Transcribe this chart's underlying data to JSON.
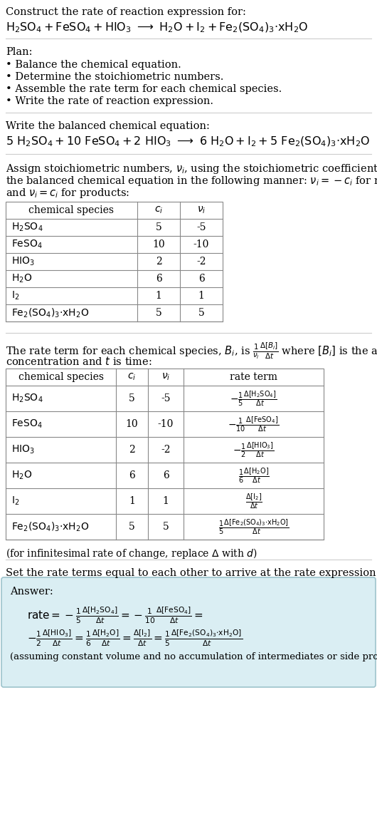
{
  "bg_color": "#ffffff",
  "title_line": "Construct the rate of reaction expression for:",
  "plan_header": "Plan:",
  "plan_items": [
    "• Balance the chemical equation.",
    "• Determine the stoichiometric numbers.",
    "• Assemble the rate term for each chemical species.",
    "• Write the rate of reaction expression."
  ],
  "balanced_header": "Write the balanced chemical equation:",
  "assign_text": [
    "Assign stoichiometric numbers, $\\nu_i$, using the stoichiometric coefficients, $c_i$, from",
    "the balanced chemical equation in the following manner: $\\nu_i = -c_i$ for reactants",
    "and $\\nu_i = c_i$ for products:"
  ],
  "table1_species": [
    "$\\mathrm{H_2SO_4}$",
    "$\\mathrm{FeSO_4}$",
    "$\\mathrm{HIO_3}$",
    "$\\mathrm{H_2O}$",
    "$\\mathrm{I_2}$",
    "$\\mathrm{Fe_2(SO_4)_3{\\cdot}xH_2O}$"
  ],
  "table1_ci": [
    "5",
    "10",
    "2",
    "6",
    "1",
    "5"
  ],
  "table1_vi": [
    "-5",
    "-10",
    "-2",
    "6",
    "1",
    "5"
  ],
  "rate_intro": [
    "The rate term for each chemical species, $B_i$, is $\\frac{1}{\\nu_i}\\frac{\\Delta[B_i]}{\\Delta t}$ where $[B_i]$ is the amount",
    "concentration and $t$ is time:"
  ],
  "table2_species": [
    "$\\mathrm{H_2SO_4}$",
    "$\\mathrm{FeSO_4}$",
    "$\\mathrm{HIO_3}$",
    "$\\mathrm{H_2O}$",
    "$\\mathrm{I_2}$",
    "$\\mathrm{Fe_2(SO_4)_3{\\cdot}xH_2O}$"
  ],
  "table2_ci": [
    "5",
    "10",
    "2",
    "6",
    "1",
    "5"
  ],
  "table2_vi": [
    "-5",
    "-10",
    "-2",
    "6",
    "1",
    "5"
  ],
  "table2_rate": [
    "$-\\frac{1}{5}\\frac{\\Delta[\\mathrm{H_2SO_4}]}{\\Delta t}$",
    "$-\\frac{1}{10}\\frac{\\Delta[\\mathrm{FeSO_4}]}{\\Delta t}$",
    "$-\\frac{1}{2}\\frac{\\Delta[\\mathrm{HIO_3}]}{\\Delta t}$",
    "$\\frac{1}{6}\\frac{\\Delta[\\mathrm{H_2O}]}{\\Delta t}$",
    "$\\frac{\\Delta[\\mathrm{I_2}]}{\\Delta t}$",
    "$\\frac{1}{5}\\frac{\\Delta[\\mathrm{Fe_2(SO_4)_3{\\cdot}xH_2O}]}{\\Delta t}$"
  ],
  "infinitesimal": "(for infinitesimal rate of change, replace Δ with $d$)",
  "set_rate_text": "Set the rate terms equal to each other to arrive at the rate expression:",
  "answer_bg": "#daeef3",
  "answer_border": "#9dc3cc"
}
